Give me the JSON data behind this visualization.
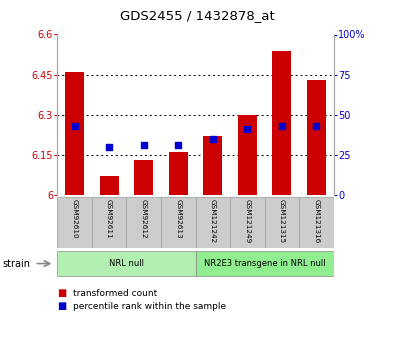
{
  "title": "GDS2455 / 1432878_at",
  "samples": [
    "GSM92610",
    "GSM92611",
    "GSM92612",
    "GSM92613",
    "GSM121242",
    "GSM121249",
    "GSM121315",
    "GSM121316"
  ],
  "transformed_count": [
    6.46,
    6.07,
    6.13,
    6.16,
    6.22,
    6.3,
    6.54,
    6.43
  ],
  "percentile_rank": [
    43,
    30,
    31,
    31,
    35,
    41,
    43,
    43
  ],
  "ylim_left": [
    6.0,
    6.6
  ],
  "ylim_right": [
    0,
    100
  ],
  "yticks_left": [
    6.0,
    6.15,
    6.3,
    6.45,
    6.6
  ],
  "yticks_right": [
    0,
    25,
    50,
    75,
    100
  ],
  "ytick_labels_left": [
    "6",
    "6.15",
    "6.3",
    "6.45",
    "6.6"
  ],
  "ytick_labels_right": [
    "0",
    "25",
    "50",
    "75",
    "100%"
  ],
  "bar_color": "#cc0000",
  "dot_color": "#0000cc",
  "bar_bottom": 6.0,
  "groups": [
    {
      "label": "NRL null",
      "start": 0,
      "end": 4,
      "color": "#b2f0b2"
    },
    {
      "label": "NR2E3 transgene in NRL null",
      "start": 4,
      "end": 8,
      "color": "#90ee90"
    }
  ],
  "strain_label": "strain",
  "legend_bar_label": "transformed count",
  "legend_dot_label": "percentile rank within the sample",
  "bar_label_color": "#cc0000",
  "dot_label_color": "#0000cc",
  "background_color": "#ffffff",
  "plot_bg_color": "#ffffff",
  "sample_box_color": "#cccccc",
  "sample_box_edge": "#999999"
}
